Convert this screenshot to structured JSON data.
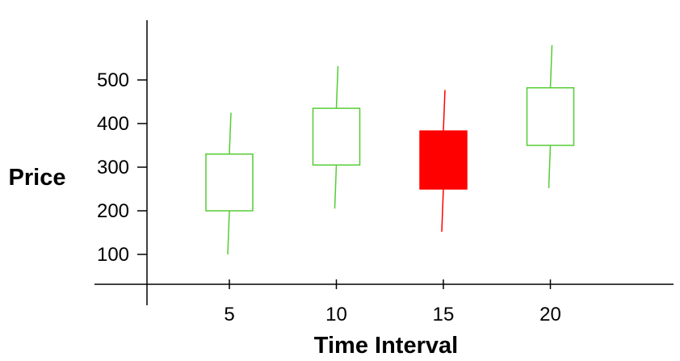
{
  "chart_data": {
    "type": "candlestick",
    "title": "",
    "xlabel": "Time Interval",
    "ylabel": "Price",
    "x_ticks": [
      5,
      10,
      15,
      20
    ],
    "y_ticks": [
      100,
      200,
      300,
      400,
      500
    ],
    "candles": [
      {
        "x": 5,
        "open": 200,
        "close": 330,
        "high": 425,
        "low": 100,
        "direction": "up"
      },
      {
        "x": 10,
        "open": 305,
        "close": 435,
        "high": 532,
        "low": 205,
        "direction": "up"
      },
      {
        "x": 15,
        "open": 383,
        "close": 250,
        "high": 477,
        "low": 152,
        "direction": "down"
      },
      {
        "x": 20,
        "open": 350,
        "close": 482,
        "high": 580,
        "low": 252,
        "direction": "up"
      }
    ],
    "colors": {
      "up": "#55cc33",
      "down": "#ff0000",
      "axis": "#000000"
    },
    "grid": false,
    "legend": "none"
  }
}
